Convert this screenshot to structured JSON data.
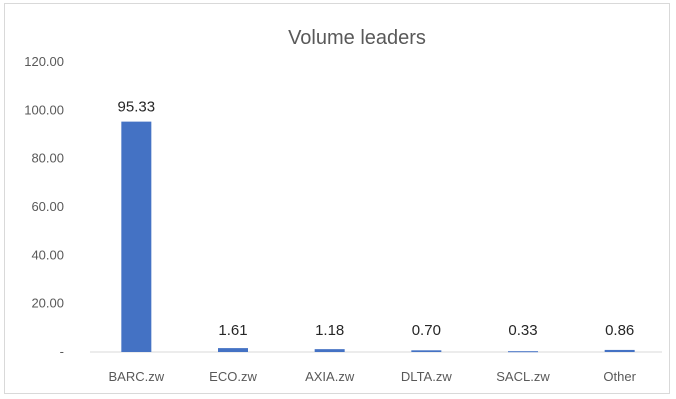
{
  "chart_data": {
    "type": "bar",
    "title": "Volume leaders",
    "categories": [
      "BARC.zw",
      "ECO.zw",
      "AXIA.zw",
      "DLTA.zw",
      "SACL.zw",
      "Other"
    ],
    "values": [
      95.33,
      1.61,
      1.18,
      0.7,
      0.33,
      0.86
    ],
    "data_labels": [
      "95.33",
      "1.61",
      "1.18",
      "0.70",
      "0.33",
      "0.86"
    ],
    "y_ticks": [
      0,
      20,
      40,
      60,
      80,
      100,
      120
    ],
    "y_tick_labels": [
      "-",
      "20.00",
      "40.00",
      "60.00",
      "80.00",
      "100.00",
      "120.00"
    ],
    "ylim": [
      0,
      120
    ],
    "xlabel": "",
    "ylabel": "",
    "grid": false,
    "legend": "none",
    "bar_color": "#4472c4"
  }
}
